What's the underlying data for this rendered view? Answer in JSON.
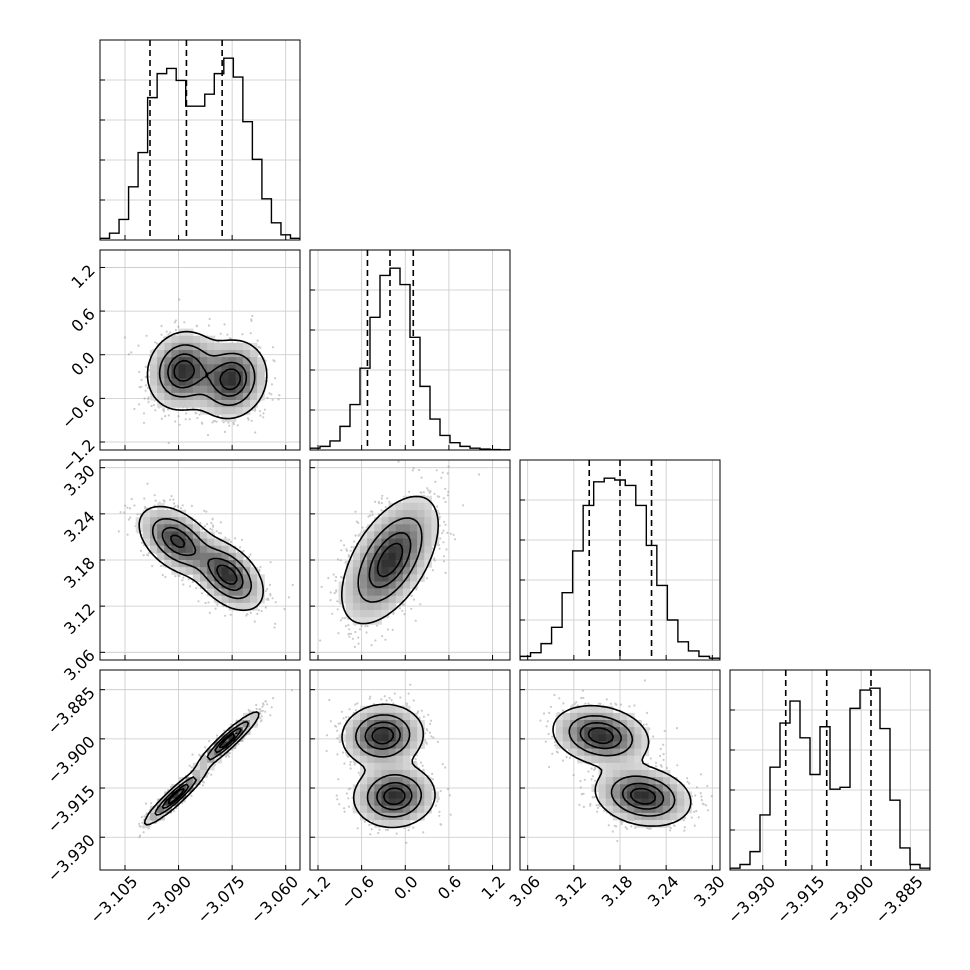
{
  "chart_data": {
    "type": "corner",
    "grid": true,
    "parameters": [
      {
        "name": "",
        "range": [
          -3.112,
          -3.056
        ],
        "ticks": [
          "−3.105",
          "−3.090",
          "−3.075",
          "−3.060"
        ],
        "tick_values": [
          -3.105,
          -3.09,
          -3.075,
          -3.06
        ]
      },
      {
        "name": "",
        "range": [
          -1.31,
          1.44
        ],
        "ticks": [
          "−1.2",
          "−0.6",
          "0.0",
          "0.6",
          "1.2"
        ],
        "tick_values": [
          -1.2,
          -0.6,
          0.0,
          0.6,
          1.2
        ]
      },
      {
        "name": "",
        "range": [
          3.05,
          3.31
        ],
        "ticks": [
          "3.06",
          "3.12",
          "3.18",
          "3.24",
          "3.30"
        ],
        "tick_values": [
          3.06,
          3.12,
          3.18,
          3.24,
          3.3
        ]
      },
      {
        "name": "",
        "range": [
          -3.94,
          -3.879
        ],
        "ticks": [
          "−3.930",
          "−3.915",
          "−3.900",
          "−3.885"
        ],
        "tick_values": [
          -3.93,
          -3.915,
          -3.9,
          -3.885
        ]
      }
    ],
    "quantiles": [
      [
        -3.098,
        -3.0878,
        -3.0778
      ],
      [
        -0.52,
        -0.21,
        0.11
      ],
      [
        3.14,
        3.18,
        3.221
      ],
      [
        -3.923,
        -3.9105,
        -3.897
      ]
    ],
    "histograms": [
      [
        0.01,
        0.04,
        0.12,
        0.31,
        0.51,
        0.83,
        0.97,
        1.0,
        0.93,
        0.78,
        0.78,
        0.85,
        0.97,
        1.06,
        0.95,
        0.69,
        0.47,
        0.24,
        0.1,
        0.03,
        0.01
      ],
      [
        0.01,
        0.02,
        0.05,
        0.13,
        0.25,
        0.45,
        0.73,
        0.96,
        1.0,
        0.91,
        0.62,
        0.35,
        0.17,
        0.08,
        0.04,
        0.02,
        0.01,
        0.005,
        0.002,
        0.001
      ],
      [
        0.02,
        0.04,
        0.09,
        0.18,
        0.37,
        0.6,
        0.85,
        0.98,
        1.0,
        0.99,
        0.96,
        0.85,
        0.63,
        0.41,
        0.22,
        0.1,
        0.05,
        0.02,
        0.01
      ],
      [
        0.01,
        0.03,
        0.1,
        0.3,
        0.56,
        0.8,
        0.92,
        0.72,
        0.52,
        0.78,
        0.44,
        0.45,
        0.88,
        0.98,
        0.99,
        0.77,
        0.38,
        0.12,
        0.03,
        0.01
      ]
    ],
    "pairs": {
      "1_0": {
        "modes": [
          {
            "x": -3.0888,
            "y": -0.22,
            "sx": 0.0048,
            "sy": 0.26,
            "rho": 0.1,
            "w": 0.5
          },
          {
            "x": -3.0752,
            "y": -0.34,
            "sx": 0.0048,
            "sy": 0.26,
            "rho": 0.1,
            "w": 0.5
          }
        ]
      },
      "2_0": {
        "modes": [
          {
            "x": -3.0905,
            "y": 3.205,
            "sx": 0.0052,
            "sy": 0.022,
            "rho": -0.45,
            "w": 0.5
          },
          {
            "x": -3.0762,
            "y": 3.16,
            "sx": 0.0048,
            "sy": 0.022,
            "rho": -0.45,
            "w": 0.5
          }
        ]
      },
      "2_1": {
        "modes": [
          {
            "x": -0.21,
            "y": 3.18,
            "sx": 0.32,
            "sy": 0.04,
            "rho": 0.55,
            "w": 1.0
          }
        ]
      },
      "3_0": {
        "modes": [
          {
            "x": -3.0908,
            "y": -3.9175,
            "sx": 0.0042,
            "sy": 0.0042,
            "rho": 0.93,
            "w": 0.5
          },
          {
            "x": -3.0762,
            "y": -3.9005,
            "sx": 0.0042,
            "sy": 0.0042,
            "rho": 0.93,
            "w": 0.5
          }
        ]
      },
      "3_1": {
        "modes": [
          {
            "x": -0.31,
            "y": -3.899,
            "sx": 0.27,
            "sy": 0.0046,
            "rho": 0.05,
            "w": 0.5
          },
          {
            "x": -0.15,
            "y": -3.9175,
            "sx": 0.27,
            "sy": 0.0046,
            "rho": 0.05,
            "w": 0.5
          }
        ]
      },
      "3_2": {
        "modes": [
          {
            "x": 3.155,
            "y": -3.899,
            "sx": 0.03,
            "sy": 0.0044,
            "rho": -0.2,
            "w": 0.5
          },
          {
            "x": 3.21,
            "y": -3.9175,
            "sx": 0.03,
            "sy": 0.0044,
            "rho": -0.2,
            "w": 0.5
          }
        ]
      }
    },
    "contour_levels": [
      0.118,
      0.393,
      0.675,
      0.865
    ]
  }
}
